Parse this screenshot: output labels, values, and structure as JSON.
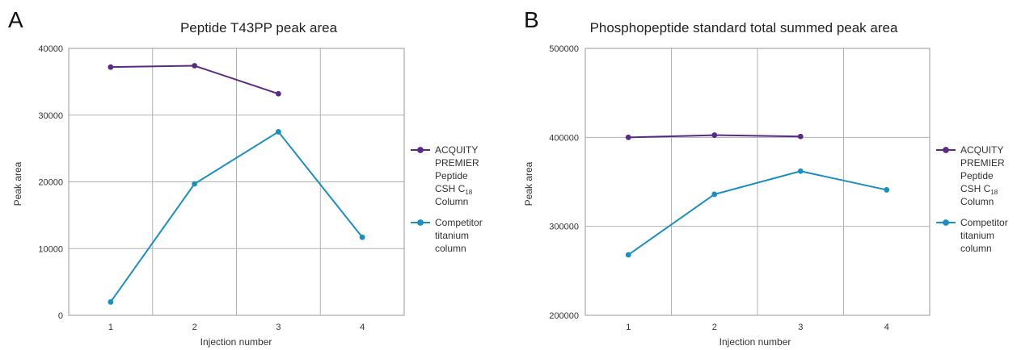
{
  "figure": {
    "legend": {
      "series_a": [
        "ACQUITY",
        "PREMIER",
        "Peptide",
        "CSH C",
        "18",
        "Column"
      ],
      "series_b": [
        "Competitor",
        "titanium",
        "column"
      ]
    },
    "colors": {
      "acquity": "#5b2a86",
      "competitor": "#1a8fc1",
      "grid": "#b3b3b3"
    }
  },
  "panels": [
    {
      "letter": "A"
    },
    {
      "letter": "B"
    }
  ],
  "chart_data": [
    {
      "type": "line",
      "title": "Peptide T43PP peak area",
      "xlabel": "Injection number",
      "ylabel": "Peak area",
      "categories": [
        "1",
        "2",
        "3",
        "4"
      ],
      "ylim": [
        0,
        40000
      ],
      "yticks": [
        "0",
        "10000",
        "20000",
        "30000",
        "40000"
      ],
      "grid": true,
      "legend_position": "right",
      "series": [
        {
          "name": "ACQUITY PREMIER Peptide CSH C18 Column",
          "color": "#5b2a86",
          "values": [
            37200,
            37400,
            33200,
            null
          ]
        },
        {
          "name": "Competitor titanium column",
          "color": "#1a8fc1",
          "values": [
            2000,
            19700,
            27500,
            11700
          ]
        }
      ]
    },
    {
      "type": "line",
      "title": "Phosphopeptide standard total summed peak area",
      "xlabel": "Injection number",
      "ylabel": "Peak area",
      "categories": [
        "1",
        "2",
        "3",
        "4"
      ],
      "ylim": [
        200000,
        500000
      ],
      "yticks": [
        "200000",
        "300000",
        "400000",
        "500000"
      ],
      "grid": true,
      "legend_position": "right",
      "series": [
        {
          "name": "ACQUITY PREMIER Peptide CSH C18 Column",
          "color": "#5b2a86",
          "values": [
            400000,
            402500,
            401000,
            null
          ]
        },
        {
          "name": "Competitor titanium column",
          "color": "#1a8fc1",
          "values": [
            268000,
            336000,
            362000,
            341000
          ]
        }
      ]
    }
  ]
}
